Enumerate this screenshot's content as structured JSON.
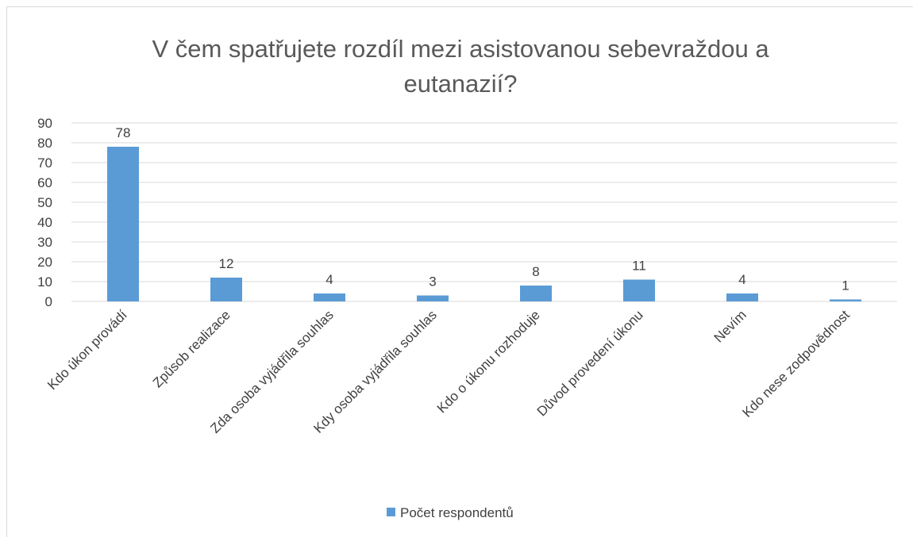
{
  "chart_data": {
    "type": "bar",
    "title": "V čem spatřujete rozdíl mezi asistovanou sebevraždou a eutanazií?",
    "categories": [
      "Kdo úkon provádí",
      "Způsob realizace",
      "Zda osoba vyjádřila souhlas",
      "Kdy osoba vyjádřila souhlas",
      "Kdo o úkonu rozhoduje",
      "Důvod provedení úkonu",
      "Nevím",
      "Kdo nese zodpovědnost"
    ],
    "series": [
      {
        "name": "Počet respondentů",
        "color": "#5b9bd5",
        "values": [
          78,
          12,
          4,
          3,
          8,
          11,
          4,
          1
        ]
      }
    ],
    "ylim": [
      0,
      90
    ],
    "yticks": [
      0,
      10,
      20,
      30,
      40,
      50,
      60,
      70,
      80,
      90
    ],
    "grid": true,
    "legend": "bottom"
  }
}
